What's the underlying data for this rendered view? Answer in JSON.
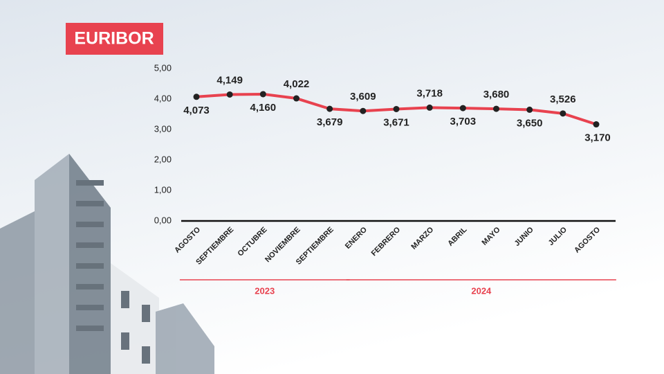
{
  "chart_data": {
    "type": "line",
    "title": "EURIBOR",
    "categories": [
      "AGOSTO",
      "SEPTIEMBRE",
      "OCTUBRE",
      "NOVIEMBRE",
      "SEPTIEMBRE",
      "ENERO",
      "FEBRERO",
      "MARZO",
      "ABRIL",
      "MAYO",
      "JUNIO",
      "JULIO",
      "AGOSTO"
    ],
    "series": [
      {
        "color": "#e8424f",
        "values": [
          4.073,
          4.149,
          4.16,
          4.022,
          3.679,
          3.609,
          3.671,
          3.718,
          3.703,
          3.68,
          3.65,
          3.526,
          3.17
        ],
        "value_labels": [
          "4,073",
          "4,149",
          "4,160",
          "4,022",
          "3,679",
          "3,609",
          "3,671",
          "3,718",
          "3,703",
          "3,680",
          "3,650",
          "3,526",
          "3,170"
        ]
      }
    ],
    "ylim": [
      0,
      5
    ],
    "yticks": [
      {
        "value": 0,
        "label": "0,00"
      },
      {
        "value": 1,
        "label": "1,00"
      },
      {
        "value": 2,
        "label": "2,00"
      },
      {
        "value": 3,
        "label": "3,00"
      },
      {
        "value": 4,
        "label": "4,00"
      },
      {
        "value": 5,
        "label": "5,00"
      }
    ],
    "category_groups": [
      {
        "label": "2023",
        "count": 5
      },
      {
        "label": "2024",
        "count": 8
      }
    ]
  }
}
